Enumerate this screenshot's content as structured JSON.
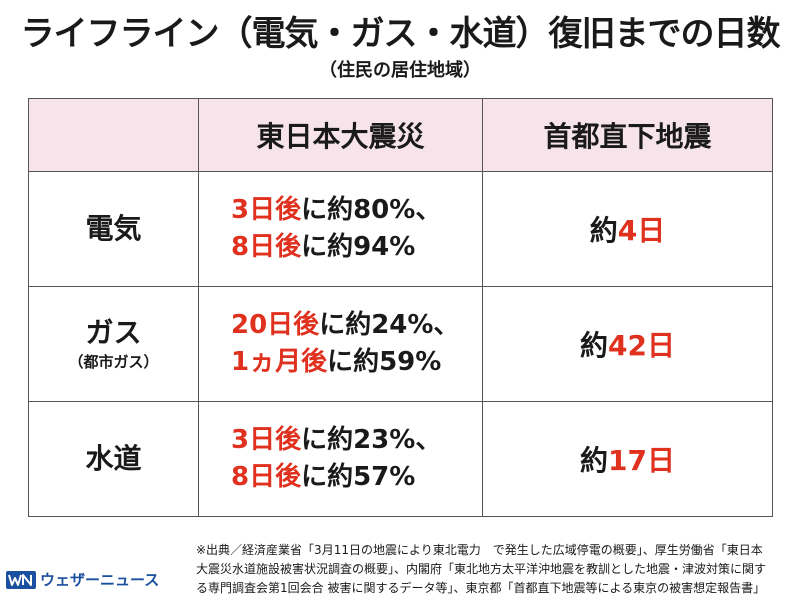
{
  "title": "ライフライン（電気・ガス・水道）復旧までの日数",
  "subtitle": "（住民の居住地域）",
  "table": {
    "headers": [
      "",
      "東日本大震災",
      "首都直下地震"
    ],
    "rows": [
      {
        "label": "電気",
        "sublabel": "",
        "east_lines": [
          {
            "days": "3日後",
            "rest": "に約80%、"
          },
          {
            "days": "8日後",
            "rest": "に約94%"
          }
        ],
        "capital_prefix": "約",
        "capital_days": "4日"
      },
      {
        "label": "ガス",
        "sublabel": "（都市ガス）",
        "east_lines": [
          {
            "days": "20日後",
            "rest": "に約24%、"
          },
          {
            "days": "1ヵ月後",
            "rest": "に約59%"
          }
        ],
        "capital_prefix": "約",
        "capital_days": "42日"
      },
      {
        "label": "水道",
        "sublabel": "",
        "east_lines": [
          {
            "days": "3日後",
            "rest": "に約23%、"
          },
          {
            "days": "8日後",
            "rest": "に約57%"
          }
        ],
        "capital_prefix": "約",
        "capital_days": "17日"
      }
    ]
  },
  "source_lines": [
    "※出典／経済産業省「3月11日の地震により東北電力　で発生した広域停電の概要」、厚生労働省「東日本",
    "大震災水道施設被害状況調査の概要」、内閣府「東北地方太平洋沖地震を教訓とした地震・津波対策に関す",
    "る専門調査会第1回会合 被害に関するデータ等」、東京都「首都直下地震等による東京の被害想定報告書」"
  ],
  "logo": {
    "text": "ウェザーニュース",
    "mark_color": "#1b4fa0"
  },
  "colors": {
    "accent_red": "#e0301e",
    "header_bg": "#f6e4ea"
  }
}
